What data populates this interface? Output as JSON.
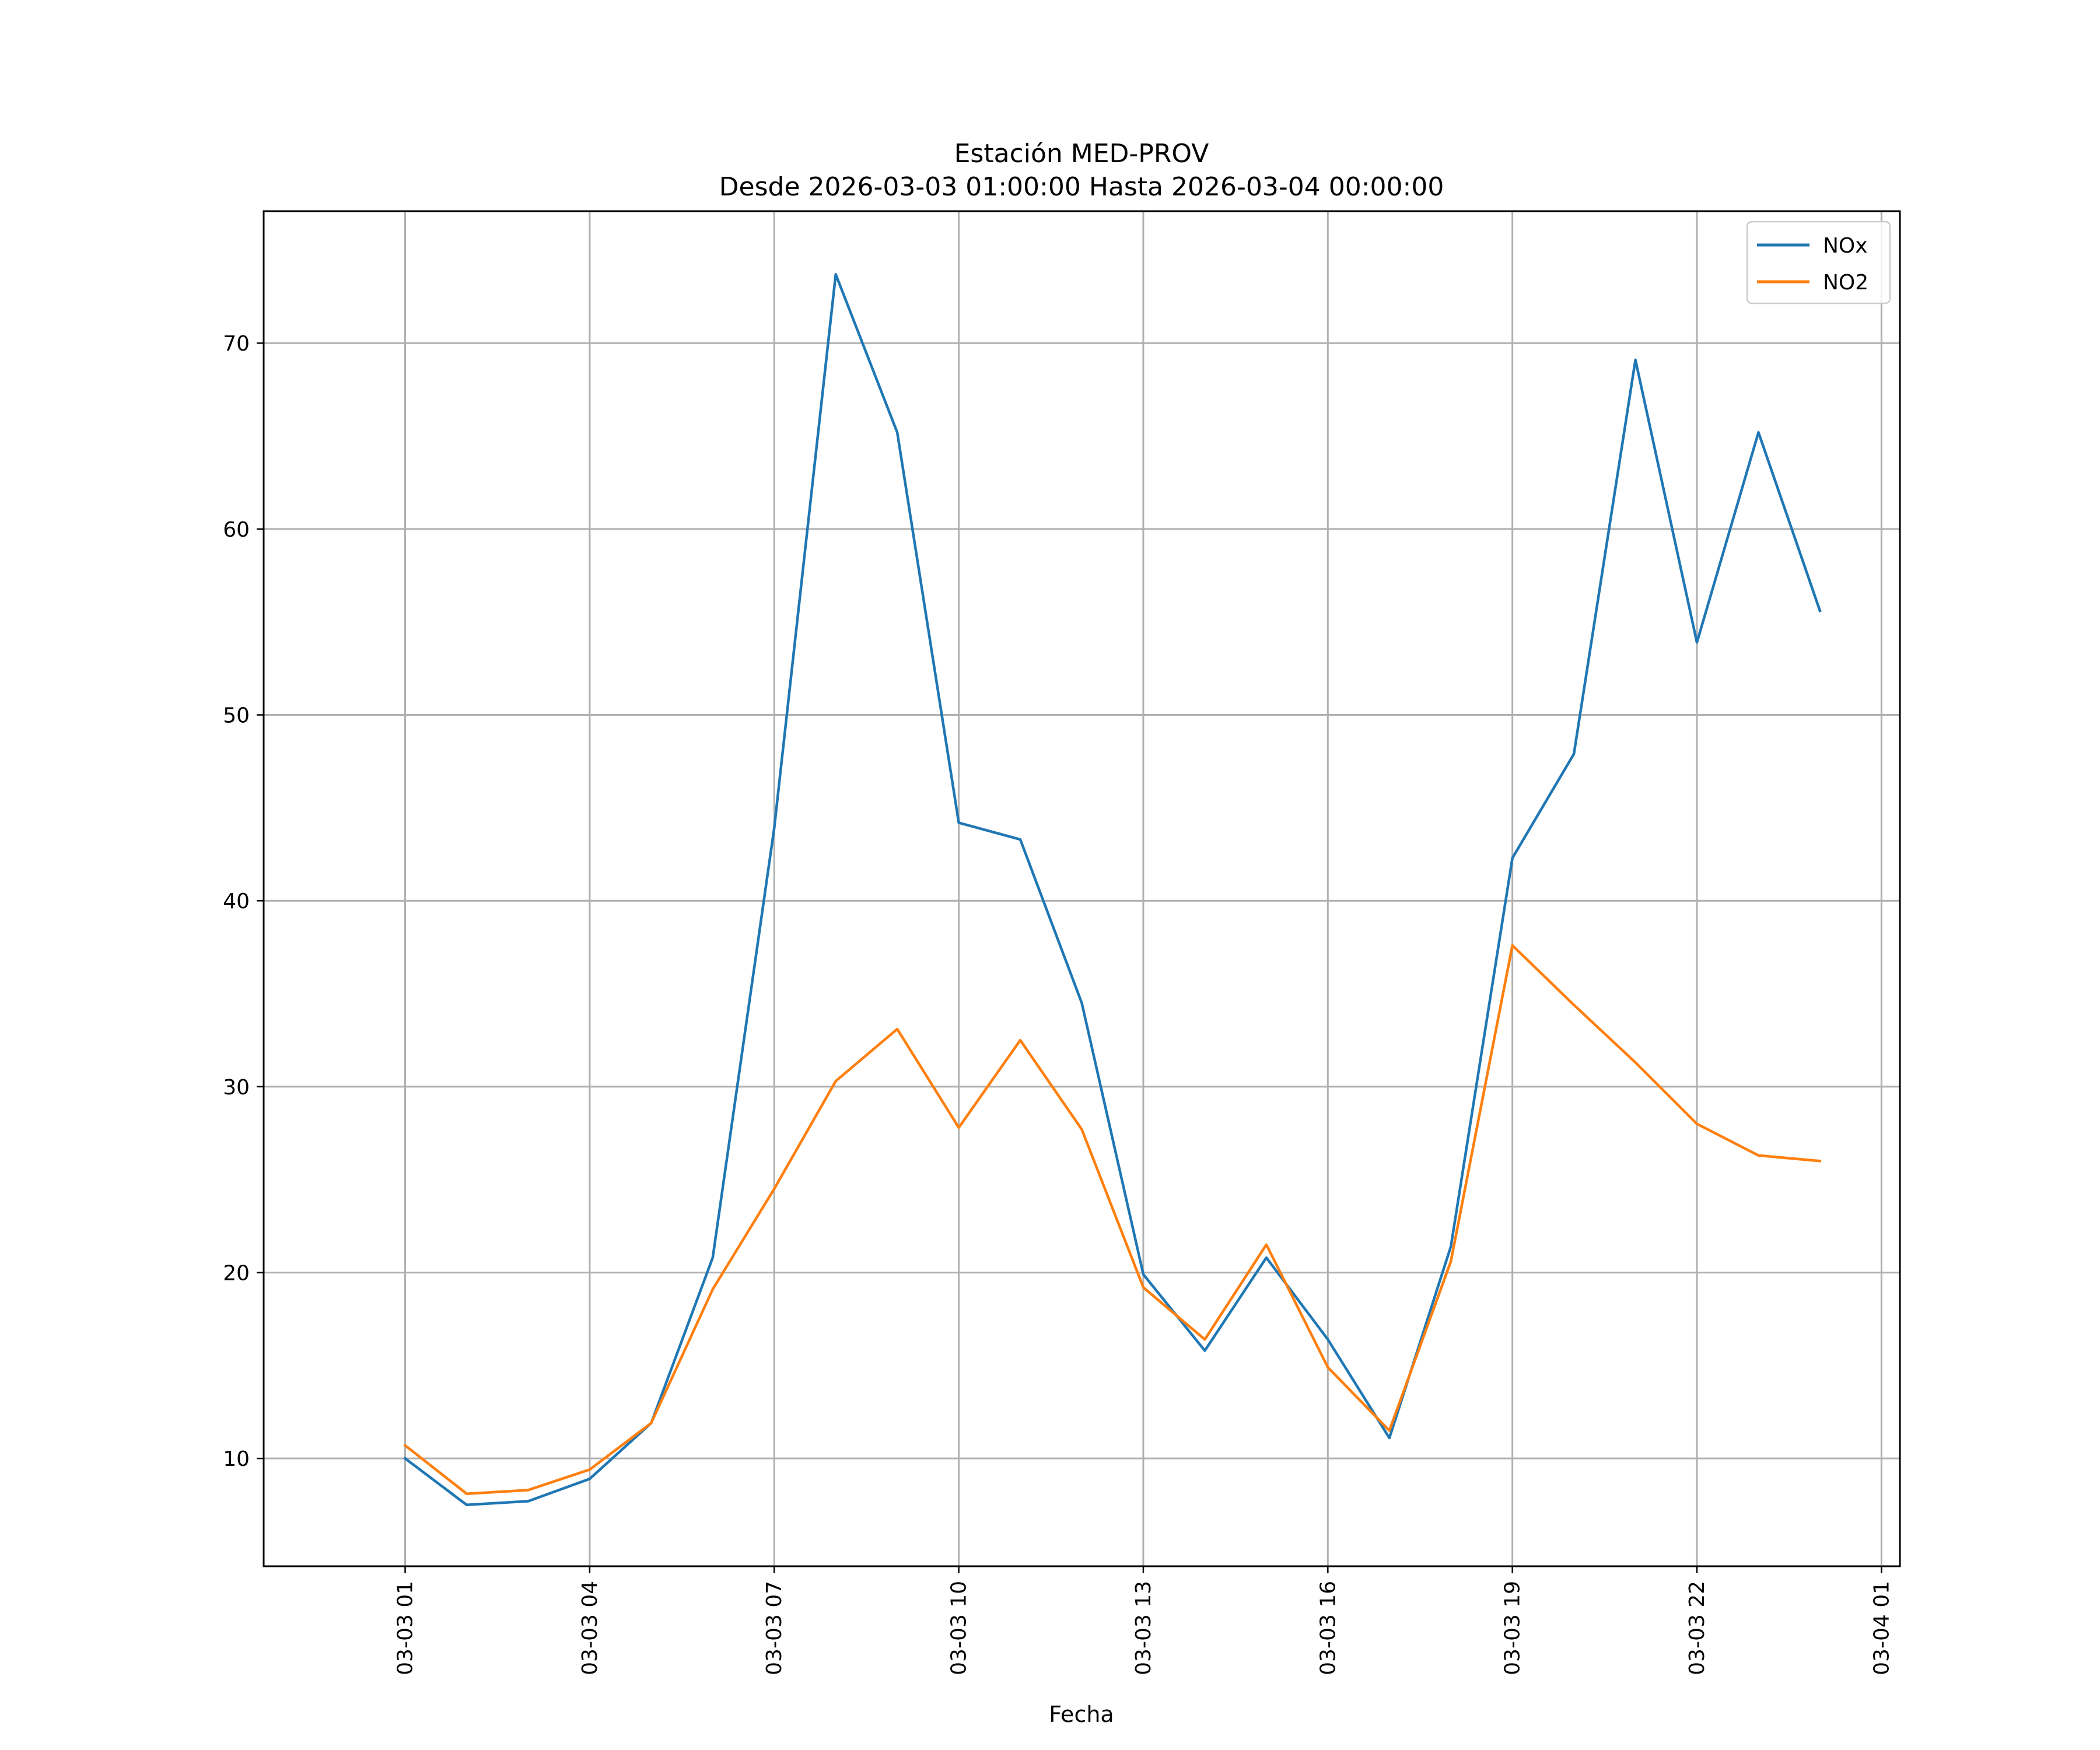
{
  "chart_data": {
    "type": "line",
    "title": "Estación MED-PROV",
    "subtitle": "Desde 2026-03-03 01:00:00 Hasta 2026-03-04 00:00:00",
    "xlabel": "Fecha",
    "ylabel": "",
    "x": [
      "2026-03-03 01:00",
      "2026-03-03 02:00",
      "2026-03-03 03:00",
      "2026-03-03 04:00",
      "2026-03-03 05:00",
      "2026-03-03 06:00",
      "2026-03-03 07:00",
      "2026-03-03 08:00",
      "2026-03-03 09:00",
      "2026-03-03 10:00",
      "2026-03-03 11:00",
      "2026-03-03 12:00",
      "2026-03-03 13:00",
      "2026-03-03 14:00",
      "2026-03-03 15:00",
      "2026-03-03 16:00",
      "2026-03-03 17:00",
      "2026-03-03 18:00",
      "2026-03-03 19:00",
      "2026-03-03 20:00",
      "2026-03-03 21:00",
      "2026-03-03 22:00",
      "2026-03-03 23:00",
      "2026-03-04 00:00"
    ],
    "series": [
      {
        "name": "NOx",
        "color": "#1f77b4",
        "values": [
          10.0,
          7.5,
          7.7,
          8.9,
          11.9,
          20.8,
          43.9,
          73.7,
          65.2,
          44.2,
          43.3,
          34.5,
          19.9,
          15.8,
          20.8,
          16.4,
          11.1,
          21.4,
          42.3,
          47.9,
          69.1,
          53.9,
          65.2,
          55.6
        ]
      },
      {
        "name": "NO2",
        "color": "#ff7f0e",
        "values": [
          10.7,
          8.1,
          8.3,
          9.4,
          11.9,
          19.1,
          24.5,
          30.3,
          33.1,
          27.8,
          32.5,
          27.7,
          19.2,
          16.4,
          21.5,
          14.9,
          11.5,
          20.6,
          37.6,
          34.4,
          31.3,
          28.0,
          26.3,
          26.0
        ]
      }
    ],
    "x_ticks": [
      "03-03 01",
      "03-03 04",
      "03-03 07",
      "03-03 10",
      "03-03 13",
      "03-03 16",
      "03-03 19",
      "03-03 22",
      "03-04 01"
    ],
    "y_ticks": [
      10,
      20,
      30,
      40,
      50,
      60,
      70
    ],
    "xlim": [
      "2026-03-02 22:42",
      "2026-03-04 01:18"
    ],
    "ylim": [
      4.2,
      77.1
    ],
    "grid": true,
    "legend": "top-right"
  }
}
